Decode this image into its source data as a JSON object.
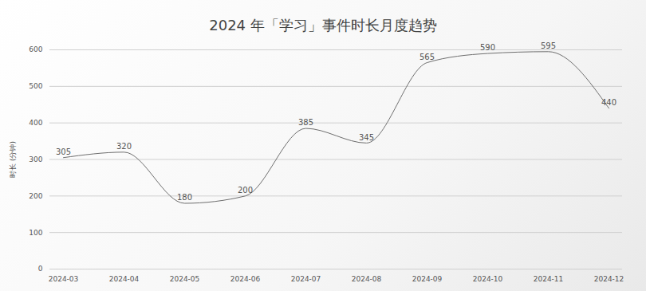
{
  "chart_data": {
    "type": "line",
    "title": "2024 年「学习」事件时长月度趋势",
    "y_label": "时长 (分钟)",
    "categories": [
      "2024-03",
      "2024-04",
      "2024-05",
      "2024-06",
      "2024-07",
      "2024-08",
      "2024-09",
      "2024-10",
      "2024-11",
      "2024-12"
    ],
    "values": [
      305,
      320,
      180,
      200,
      385,
      345,
      565,
      590,
      595,
      440
    ],
    "color": "#6e6e6e",
    "ylim": [
      0,
      600
    ],
    "yticks": [
      0,
      100,
      200,
      300,
      400,
      500,
      600
    ],
    "grid": true,
    "data_labels": true
  }
}
